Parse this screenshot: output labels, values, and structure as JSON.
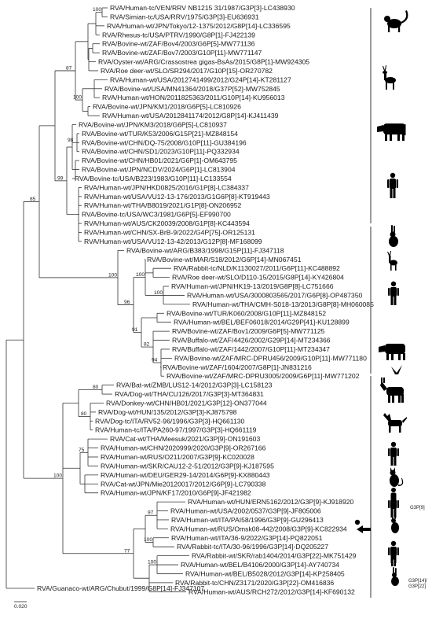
{
  "leaves": [
    "RVA/Human-tc/VEN/RRV NB1215 31/1987/G3P[3]-LC438930",
    "RVA/Simian-tc/USA/RRV/1975/G3P[3]-EU636931",
    "RVA/Human-wt/JPN/Tokyo/12-1375/2012/G8P[14]-LC336595",
    "RVA/Rhesus-tc/USA/PTRV/1990/G8P[1]-FJ422139",
    "RVA/Bovine-wt/ZAF/Bov4/2003/G6P[5]-MW771136",
    "RVA/Bovine-wt/ZAF/Bov7/2003/G10P[11]-MW771147",
    "RVA/Oyster-wt/ARG/Crassostrea gigas-BsAs/2015/G8P[1]-MW924305",
    "RVA/Roe deer-wt/SLO/SR294/2017/G10P[15]-OR270782",
    "RVA/Human-wt/USA/2012741499/2012/G24P[14]-KT281127",
    "RVA/Bovine-wt/USA/MN41364/2018/G37P[52]-MW752845",
    "RVA/Human-wt/HON/2011825363/2011/G10P[14]-KU956013",
    "RVA/Bovine-wt/JPN/KM1/2018/G6P[5]-LC810926",
    "RVA/Human-wt/USA/2012841174/2012/G8P[14]-KJ411439",
    "RVA/Bovine-wt/JPN/KM3/2018/G6P[5]-LC810937",
    "RVA/Bovine-wt/TUR/K53/2006/G15P[21]-MZ848154",
    "RVA/Bovine-wt/CHN/DQ-75/2008/G10P[11]-GU384196",
    "RVA/Bovine-wt/CHN/SD1/2023/G10P[11]-PQ332934",
    "RVA/Bovine-wt/CHN/HB01/2021/G6P[1]-OM643795",
    "RVA/Bovine-wt/JPN/NCDV/2024/G6P[1]-LC813904",
    "RVA/Bovine-tc/USA/B223/1983/G10P[11]-LC133554",
    "RVA/Human-wt/JPN/HKD0825/2016/G1P[8]-LC384337",
    "RVA/Human-wt/USA/VU12-13-176/2013/G1G6P[8]-KT919443",
    "RVA/Human-wt/THA/B8019/2021/G1P[8]-ON206952",
    "RVA/Bovine-tc/USA/WC3/1981/G6P[5]-EF990700",
    "RVA/Human-wt/AUS/CK20039/2008/G1P[8]-KC443594",
    "RVA/Human-wt/CHN/SX-BrB-9/2022/G4P[75]-OR125131",
    "RVA/Human-wt/USA/VU12-13-42/2013/G12P[8]-MF168099",
    "RVA/Bovine-wt/ARG/B383/1998/G15P[11]-FJ347118",
    "RVA/Bovine-wt/MAR/S18/2012/G6P[14]-MN067451",
    "RVA/Rabbit-tc/NLD/K1130027/2011/G6P[11]-KC488892",
    "RVA/Roe deer-wt/SLO/D110-15/2015/G8P[14]-KY426804",
    "RVA/Human-wt/JPN/HK19-13/2019/G8P[8]-LC751666",
    "RVA/Human-wt/USA/3000803565/2017/G6P[8]-OP487350",
    "RVA/Human-wt/THA/CMH-S018-13/2013/G8P[8]-MH060085",
    "RVA/Bovine-wt/TUR/K060/2008/G10P[11]-MZ848152",
    "RVA/Human-wt/BEL/BEF06018/2014/G29P[41]-KU128899",
    "RVA/Bovine-wt/ZAF/Bov1/2009/G6P[5]-MW771125",
    "RVA/Buffalo-wt/ZAF/4426/2002/G29P[14]-MT234366",
    "RVA/Buffalo-wt/ZAF/1442/2007/G10P[11]-MT234347",
    "RVA/Bovine-wt/ZAF/MRC-DPRU456/2009/G10P[11]-MW771180",
    "RVA/Bovine-wt/ZAF/1604/2007/G8P[1]-JN831216",
    "RVA/Bovine-wt/ZAF/MRC-DPRU3005/2009/G6P[11]-MW771202",
    "RVA/Bat-wt/ZMB/LUS12-14/2012/G3P[3]-LC158123",
    "RVA/Dog-wt/THA/CU126/2017/G3P[3]-MT364831",
    "RVA/Donkey-wt/CHN/HB01/2021/G3P[12]-ON377044",
    "RVA/Dog-wt/HUN/135/2012/G3P[3]-KJ875798",
    "RVA/Dog-tc/ITA/RV52-96/1996/G3P[3]-HQ661130",
    "RVA/Human-tc/ITA/PA260-97/1997/G3P[3]-HQ661119",
    "RVA/Cat-wt/THA/Meesuk/2021/G3P[9]-ON191603",
    "RVA/Human-wt/CHN/2020999/2020/G3P[9]-OR267166",
    "RVA/Human-wt/RUS/O211/2007/G3P[9]-KC020028",
    "RVA/Human-wt/SKR/CAU12-2-51/2012/G3P[9]-KJ187595",
    "RVA/Human-wt/DEU/GER29-14/2014/G6P[9]-KX880443",
    "RVA/Cat-wt/JPN/Mie20120017/2012/G6P[9]-LC790338",
    "RVA/Human-wt/JPN/KF17/2010/G6P[9]-JF421982",
    "RVA/Human-wt/HUN/ERN5162/2012/G3P[9]-KJ918920",
    "RVA/Human-wt/USA/2002/0537/G3P[9]-JF805006",
    "RVA/Human-wt/ITA/PAI58/1996/G3P[9]-GU296413",
    "RVA/Human-wt/RUS/Omsk08-442/2008/G3P[9]-KC822934",
    "RVA/Human-wt/ITA/36-9/2022/G3P[14]-PQ822051",
    "RVA/Rabbit-tc/ITA/30-96/1996/G3P[14]-DQ205227",
    "RVA/Rabbit-wt/SKR/rab1404/2014/G3P[22]-MK751429",
    "RVA/Human-wt/BEL/B4106/2000/G3P[14]-AY740734",
    "RVA/Human-wt/BEL/B5028/2012/G3P[14]-KP258405",
    "RVA/Rabbit-tc/CHN/Z3171/2020/G3P[22]-OM416836",
    "RVA/Human-wt/AUS/RCH272/2012/G3P[14]-KF690132",
    "RVA/Guanaco-wt/ARG/Chubut/1999/G8P[14]-FJ347107"
  ],
  "bootstrap": [
    "100",
    "100",
    "87",
    "98",
    "99",
    "100",
    "100",
    "85",
    "100",
    "96",
    "91",
    "100",
    "82",
    "94",
    "80",
    "80",
    "100",
    "75",
    "97",
    "100",
    "77",
    "100"
  ],
  "annotations": {
    "g3p9": "G3P[9]",
    "g3p14": "G3P[14]/",
    "g3p22": "G3P[22]"
  },
  "scale_bar": "0.020",
  "icons": [
    "monkey-icon",
    "deer-icon",
    "cow-icon",
    "human-icon",
    "rabbit-icon",
    "deer-icon",
    "human-icon",
    "cow-icon",
    "bird-icon",
    "donkey-icon",
    "dog-icon",
    "human-icon",
    "cat-icon",
    "human-icon",
    "cat-icon",
    "human-icon",
    "human-icon",
    "rabbit-icon",
    "human-icon",
    "arrow-icon",
    "dot-icon"
  ]
}
